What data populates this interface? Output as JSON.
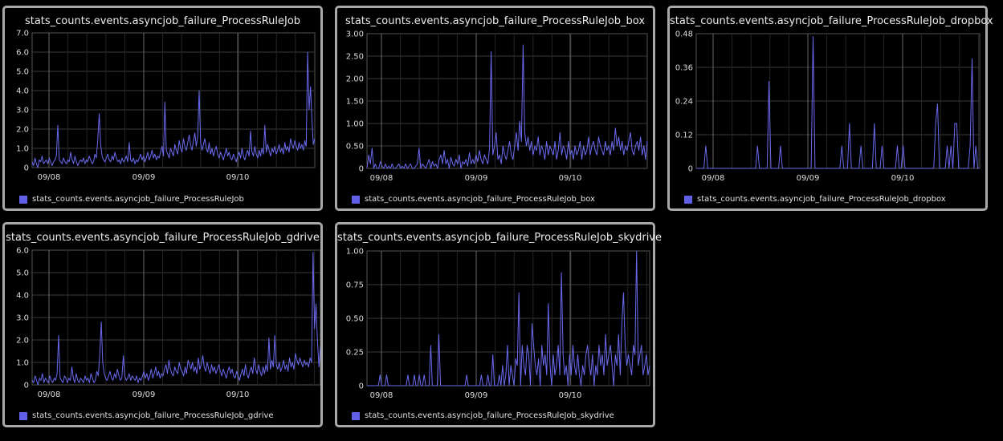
{
  "series_color": "#6b6bf0",
  "grid_color": "#3a3a3a",
  "chart_data": [
    {
      "type": "line",
      "title": "stats_counts.events.asyncjob_failure_ProcessRuleJob",
      "legend": "stats_counts.events.asyncjob_failure_ProcessRuleJob",
      "legend_position": "bottom-left",
      "grid": true,
      "ylim": [
        0,
        7
      ],
      "yticks": [
        "0",
        "1.0",
        "2.0",
        "3.0",
        "4.0",
        "5.0",
        "6.0",
        "7.0"
      ],
      "xticks": [
        "09/08",
        "09/09",
        "09/10"
      ],
      "series": [
        {
          "values": [
            0.3,
            0.1,
            0.5,
            0.2,
            0.0,
            0.4,
            0.3,
            0.6,
            0.2,
            0.3,
            0.4,
            0.2,
            0.5,
            0.3,
            0.1,
            0.3,
            0.4,
            0.6,
            2.2,
            0.4,
            0.3,
            0.2,
            0.5,
            0.3,
            0.2,
            0.4,
            0.3,
            0.8,
            0.4,
            0.2,
            0.6,
            0.3,
            0.1,
            0.3,
            0.4,
            0.3,
            0.5,
            0.2,
            0.4,
            0.3,
            0.6,
            0.4,
            0.2,
            0.3,
            0.7,
            0.5,
            1.5,
            2.8,
            1.2,
            0.6,
            0.4,
            0.3,
            0.5,
            0.7,
            0.4,
            0.3,
            0.6,
            0.4,
            0.8,
            0.5,
            0.3,
            0.4,
            0.2,
            0.5,
            0.3,
            0.4,
            0.6,
            0.3,
            1.3,
            0.4,
            0.3,
            0.5,
            0.2,
            0.4,
            0.3,
            0.5,
            0.7,
            0.4,
            0.6,
            0.3,
            0.5,
            0.8,
            0.4,
            0.6,
            0.9,
            0.5,
            0.7,
            0.4,
            0.6,
            0.5,
            0.8,
            1.1,
            0.6,
            3.4,
            0.9,
            0.7,
            0.5,
            1.0,
            0.8,
            0.6,
            1.2,
            0.9,
            0.7,
            1.4,
            1.0,
            0.8,
            1.5,
            1.1,
            0.9,
            1.3,
            1.7,
            1.2,
            0.9,
            1.4,
            1.8,
            1.1,
            1.6,
            4.0,
            1.3,
            0.9,
            1.2,
            1.5,
            1.0,
            0.8,
            1.3,
            0.7,
            1.0,
            0.6,
            0.9,
            1.1,
            0.7,
            0.5,
            0.8,
            0.6,
            0.4,
            0.7,
            1.0,
            0.6,
            0.8,
            0.5,
            0.4,
            0.7,
            0.5,
            0.3,
            0.6,
            0.8,
            0.5,
            1.0,
            0.6,
            0.4,
            0.7,
            0.9,
            0.6,
            1.9,
            0.8,
            0.6,
            1.1,
            0.7,
            0.5,
            0.9,
            0.6,
            1.0,
            0.7,
            2.2,
            0.8,
            1.2,
            0.9,
            0.6,
            1.0,
            0.8,
            1.1,
            0.7,
            0.9,
            1.2,
            0.8,
            1.0,
            0.7,
            1.3,
            0.9,
            1.1,
            0.8,
            1.5,
            1.2,
            1.0,
            1.4,
            1.1,
            0.9,
            1.3,
            1.0,
            1.2,
            0.9,
            1.4,
            1.1,
            6.0,
            3.0,
            4.2,
            2.5,
            1.2,
            1.5
          ]
        }
      ]
    },
    {
      "type": "line",
      "title": "stats_counts.events.asyncjob_failure_ProcessRuleJob_box",
      "legend": "stats_counts.events.asyncjob_failure_ProcessRuleJob_box",
      "legend_position": "bottom-left",
      "grid": true,
      "ylim": [
        0,
        3
      ],
      "yticks": [
        "0",
        "0.50",
        "1.00",
        "1.50",
        "2.00",
        "2.50",
        "3.00"
      ],
      "xticks": [
        "09/08",
        "09/09",
        "09/10"
      ],
      "series": [
        {
          "values": [
            0.0,
            0.3,
            0.1,
            0.45,
            0.0,
            0.1,
            0.0,
            0.0,
            0.15,
            0.05,
            0.0,
            0.1,
            0.0,
            0.05,
            0.0,
            0.1,
            0.0,
            0.0,
            0.05,
            0.1,
            0.0,
            0.05,
            0.0,
            0.1,
            0.0,
            0.05,
            0.1,
            0.0,
            0.0,
            0.05,
            0.1,
            0.45,
            0.0,
            0.1,
            0.05,
            0.0,
            0.1,
            0.2,
            0.0,
            0.15,
            0.05,
            0.1,
            0.0,
            0.2,
            0.3,
            0.1,
            0.4,
            0.1,
            0.2,
            0.0,
            0.25,
            0.1,
            0.05,
            0.2,
            0.1,
            0.3,
            0.0,
            0.15,
            0.1,
            0.2,
            0.05,
            0.35,
            0.1,
            0.2,
            0.1,
            0.3,
            0.15,
            0.4,
            0.2,
            0.1,
            0.3,
            0.2,
            0.1,
            0.45,
            2.6,
            0.3,
            0.5,
            0.8,
            0.2,
            0.3,
            0.1,
            0.5,
            0.3,
            0.2,
            0.4,
            0.6,
            0.3,
            0.2,
            0.5,
            0.8,
            0.4,
            1.05,
            0.6,
            2.75,
            0.8,
            0.5,
            0.7,
            0.4,
            0.6,
            0.3,
            0.5,
            0.4,
            0.7,
            0.3,
            0.5,
            0.4,
            0.2,
            0.6,
            0.3,
            0.5,
            0.4,
            0.3,
            0.6,
            0.2,
            0.4,
            0.8,
            0.3,
            0.5,
            0.4,
            0.2,
            0.6,
            0.3,
            0.4,
            0.2,
            0.5,
            0.3,
            0.4,
            0.6,
            0.2,
            0.5,
            0.3,
            0.4,
            0.7,
            0.3,
            0.5,
            0.6,
            0.4,
            0.3,
            0.7,
            0.5,
            0.4,
            0.3,
            0.6,
            0.4,
            0.5,
            0.3,
            0.6,
            0.4,
            0.9,
            0.5,
            0.7,
            0.4,
            0.6,
            0.3,
            0.5,
            0.4,
            0.6,
            0.8,
            0.4,
            0.3,
            0.5,
            0.6,
            0.4,
            0.7,
            0.3,
            0.5,
            0.2,
            0.6
          ]
        }
      ]
    },
    {
      "type": "line",
      "title": "stats_counts.events.asyncjob_failure_ProcessRuleJob_dropbox",
      "legend": "stats_counts.events.asyncjob_failure_ProcessRuleJob_dropbox",
      "legend_position": "bottom-left",
      "grid": true,
      "ylim": [
        0,
        0.48
      ],
      "yticks": [
        "0",
        "0.12",
        "0.24",
        "0.36",
        "0.48"
      ],
      "xticks": [
        "09/08",
        "09/09",
        "09/10"
      ],
      "series": [
        {
          "values": [
            0,
            0,
            0,
            0,
            0,
            0.08,
            0,
            0,
            0,
            0,
            0,
            0,
            0,
            0,
            0,
            0,
            0,
            0,
            0,
            0,
            0,
            0,
            0,
            0,
            0,
            0,
            0,
            0,
            0,
            0,
            0,
            0,
            0.08,
            0,
            0,
            0,
            0,
            0,
            0.31,
            0,
            0,
            0,
            0,
            0,
            0.08,
            0,
            0,
            0,
            0,
            0,
            0,
            0,
            0,
            0,
            0,
            0,
            0,
            0,
            0,
            0,
            0,
            0.47,
            0,
            0,
            0,
            0,
            0,
            0,
            0,
            0,
            0,
            0,
            0,
            0,
            0,
            0,
            0.08,
            0,
            0,
            0,
            0.16,
            0,
            0,
            0,
            0,
            0,
            0.08,
            0,
            0,
            0,
            0,
            0,
            0,
            0.16,
            0,
            0,
            0,
            0.08,
            0,
            0,
            0,
            0,
            0,
            0,
            0,
            0.08,
            0,
            0,
            0.08,
            0,
            0,
            0,
            0,
            0,
            0,
            0,
            0,
            0,
            0,
            0,
            0,
            0,
            0,
            0,
            0,
            0.16,
            0.23,
            0,
            0,
            0,
            0,
            0.08,
            0,
            0.08,
            0,
            0.16,
            0.16,
            0,
            0,
            0,
            0,
            0,
            0,
            0.08,
            0.39,
            0,
            0.08,
            0,
            0
          ]
        }
      ]
    },
    {
      "type": "line",
      "title": "stats_counts.events.asyncjob_failure_ProcessRuleJob_gdrive",
      "legend": "stats_counts.events.asyncjob_failure_ProcessRuleJob_gdrive",
      "legend_position": "bottom-left",
      "grid": true,
      "ylim": [
        0,
        6
      ],
      "yticks": [
        "0",
        "1.0",
        "2.0",
        "3.0",
        "4.0",
        "5.0",
        "6.0"
      ],
      "xticks": [
        "09/08",
        "09/09",
        "09/10"
      ],
      "series": [
        {
          "values": [
            0.2,
            0.1,
            0.4,
            0.2,
            0.0,
            0.3,
            0.2,
            0.5,
            0.1,
            0.3,
            0.2,
            0.1,
            0.4,
            0.2,
            0.1,
            0.3,
            0.2,
            0.5,
            2.2,
            0.3,
            0.2,
            0.1,
            0.4,
            0.3,
            0.1,
            0.3,
            0.2,
            0.8,
            0.3,
            0.1,
            0.5,
            0.2,
            0.1,
            0.3,
            0.2,
            0.1,
            0.4,
            0.2,
            0.3,
            0.1,
            0.5,
            0.3,
            0.1,
            0.2,
            0.6,
            0.4,
            1.4,
            2.8,
            1.0,
            0.5,
            0.3,
            0.2,
            0.4,
            0.6,
            0.3,
            0.2,
            0.5,
            0.3,
            0.7,
            0.4,
            0.2,
            0.3,
            1.3,
            0.4,
            0.2,
            0.3,
            0.5,
            0.2,
            0.4,
            0.3,
            0.2,
            0.4,
            0.1,
            0.3,
            0.2,
            0.4,
            0.6,
            0.3,
            0.5,
            0.2,
            0.4,
            0.7,
            0.3,
            0.5,
            0.8,
            0.4,
            0.6,
            0.3,
            0.5,
            0.4,
            0.7,
            0.9,
            0.5,
            1.1,
            0.7,
            0.5,
            0.4,
            0.8,
            0.6,
            0.5,
            1.0,
            0.7,
            0.6,
            0.4,
            0.8,
            0.5,
            1.1,
            0.9,
            0.7,
            1.0,
            0.6,
            0.8,
            0.5,
            1.2,
            0.7,
            0.9,
            1.3,
            0.8,
            0.6,
            1.0,
            0.7,
            0.5,
            0.9,
            0.6,
            0.8,
            0.5,
            0.7,
            0.9,
            0.6,
            0.4,
            0.7,
            0.5,
            0.3,
            0.6,
            0.8,
            0.5,
            0.7,
            0.4,
            0.3,
            0.6,
            0.4,
            0.2,
            0.5,
            0.7,
            0.4,
            0.9,
            0.5,
            0.3,
            0.6,
            0.8,
            0.5,
            1.2,
            0.7,
            0.5,
            0.9,
            0.6,
            0.4,
            0.8,
            0.5,
            0.9,
            0.6,
            2.1,
            0.7,
            1.1,
            0.8,
            2.2,
            0.9,
            0.7,
            1.0,
            0.6,
            0.8,
            1.1,
            0.7,
            0.9,
            0.6,
            1.2,
            0.8,
            1.0,
            0.7,
            1.4,
            1.1,
            0.9,
            1.2,
            1.0,
            0.8,
            1.1,
            0.9,
            1.0,
            0.8,
            1.2,
            1.0,
            5.9,
            2.5,
            3.6,
            2.0,
            0.8,
            1.7
          ]
        }
      ]
    },
    {
      "type": "line",
      "title": "stats_counts.events.asyncjob_failure_ProcessRuleJob_skydrive",
      "legend": "stats_counts.events.asyncjob_failure_ProcessRuleJob_skydrive",
      "legend_position": "bottom-left",
      "grid": true,
      "ylim": [
        0,
        1
      ],
      "yticks": [
        "0",
        "0.25",
        "0.50",
        "0.75",
        "1.00"
      ],
      "xticks": [
        "09/08",
        "09/09",
        "09/10"
      ],
      "series": [
        {
          "values": [
            0,
            0,
            0,
            0,
            0,
            0,
            0,
            0,
            0.08,
            0,
            0,
            0,
            0.08,
            0,
            0,
            0,
            0,
            0,
            0,
            0,
            0,
            0,
            0,
            0,
            0,
            0.08,
            0,
            0,
            0,
            0.08,
            0,
            0,
            0.08,
            0,
            0,
            0.08,
            0,
            0,
            0,
            0.3,
            0,
            0,
            0,
            0,
            0.38,
            0,
            0,
            0,
            0,
            0,
            0,
            0,
            0,
            0,
            0,
            0,
            0,
            0,
            0,
            0,
            0,
            0.08,
            0,
            0,
            0,
            0,
            0,
            0,
            0,
            0,
            0.08,
            0,
            0,
            0,
            0.08,
            0,
            0,
            0.23,
            0,
            0,
            0,
            0.08,
            0,
            0.15,
            0,
            0.08,
            0.3,
            0,
            0.15,
            0.08,
            0,
            0.2,
            0.15,
            0.69,
            0,
            0.3,
            0.15,
            0.08,
            0.3,
            0.23,
            0,
            0.46,
            0.3,
            0.15,
            0.08,
            0.2,
            0,
            0.3,
            0.15,
            0.23,
            0.08,
            0.61,
            0.15,
            0,
            0.23,
            0.08,
            0.15,
            0.3,
            0.08,
            0.84,
            0.23,
            0.08,
            0.15,
            0,
            0.23,
            0.08,
            0.3,
            0.15,
            0.08,
            0.23,
            0.08,
            0,
            0.15,
            0.08,
            0.23,
            0.3,
            0.15,
            0.08,
            0.23,
            0,
            0.15,
            0.08,
            0.3,
            0.15,
            0.23,
            0.08,
            0.38,
            0.15,
            0.23,
            0.3,
            0.15,
            0,
            0.23,
            0.15,
            0.38,
            0.08,
            0.46,
            0.69,
            0.3,
            0.15,
            0.23,
            0.15,
            0.08,
            0.3,
            0.23,
            1.0,
            0.15,
            0.23,
            0.3,
            0.08,
            0.15,
            0.23,
            0.08,
            0.15
          ]
        }
      ]
    }
  ]
}
